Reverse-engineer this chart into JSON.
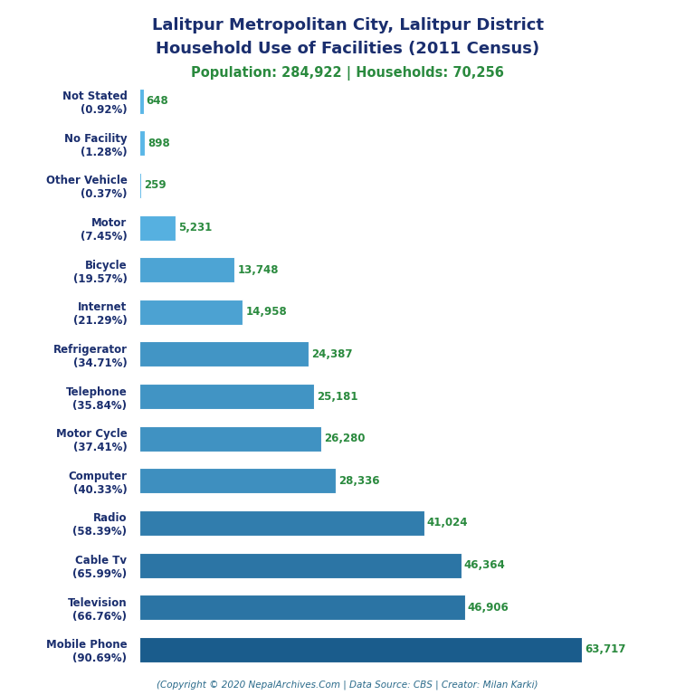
{
  "title_line1": "Lalitpur Metropolitan City, Lalitpur District",
  "title_line2": "Household Use of Facilities (2011 Census)",
  "subtitle": "Population: 284,922 | Households: 70,256",
  "footer": "(Copyright © 2020 NepalArchives.Com | Data Source: CBS | Creator: Milan Karki)",
  "categories": [
    "Not Stated\n(0.92%)",
    "No Facility\n(1.28%)",
    "Other Vehicle\n(0.37%)",
    "Motor\n(7.45%)",
    "Bicycle\n(19.57%)",
    "Internet\n(21.29%)",
    "Refrigerator\n(34.71%)",
    "Telephone\n(35.84%)",
    "Motor Cycle\n(37.41%)",
    "Computer\n(40.33%)",
    "Radio\n(58.39%)",
    "Cable Tv\n(65.99%)",
    "Television\n(66.76%)",
    "Mobile Phone\n(90.69%)"
  ],
  "values": [
    648,
    898,
    259,
    5231,
    13748,
    14958,
    24387,
    25181,
    26280,
    28336,
    41024,
    46364,
    46906,
    63717
  ],
  "bar_color_light": "#5bb8e8",
  "bar_color_dark": "#1a5c8c",
  "title_color": "#1a2e6e",
  "subtitle_color": "#2a8a3e",
  "value_color": "#2a8a3e",
  "footer_color": "#2a6a8a",
  "label_color": "#1a2e6e",
  "background_color": "#ffffff",
  "xlim": [
    0,
    70000
  ],
  "figsize": [
    7.68,
    7.68
  ],
  "dpi": 100
}
